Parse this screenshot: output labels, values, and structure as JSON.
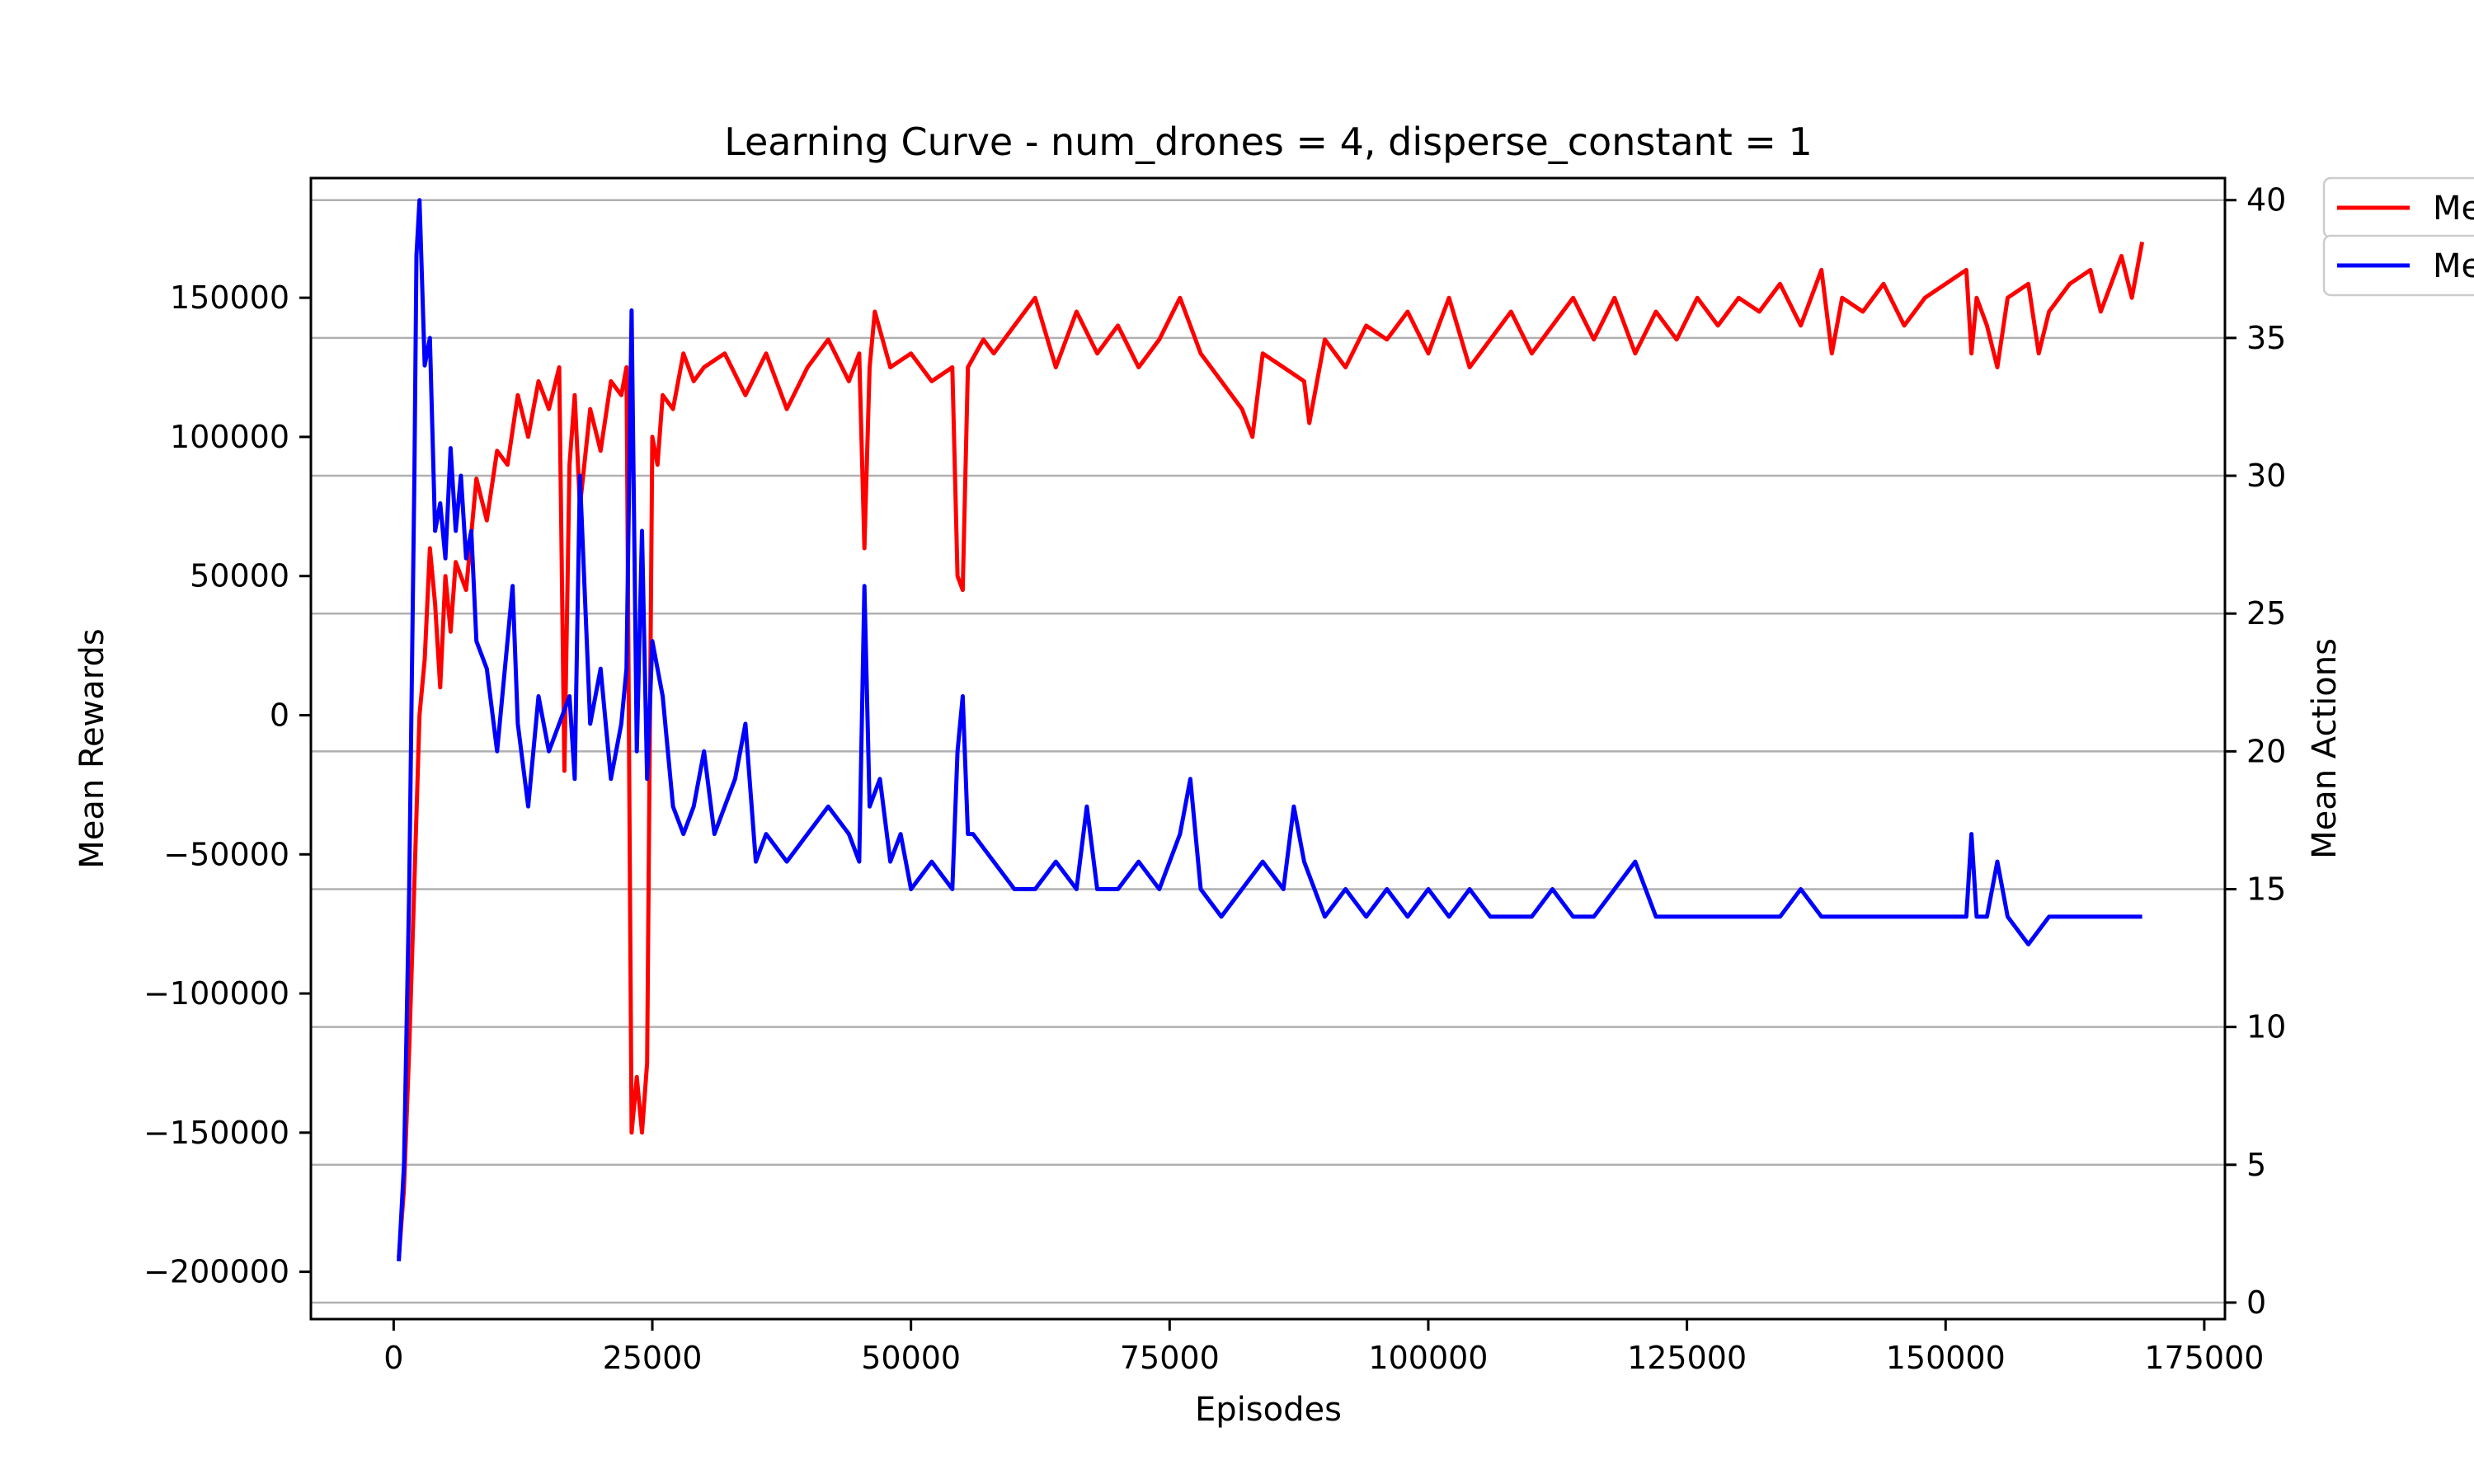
{
  "chart_data": {
    "type": "line",
    "title": "Learning Curve - num_drones = 4, disperse_constant = 1",
    "xlabel": "Episodes",
    "ylabel": "Mean Rewards",
    "y2label": "Mean Actions",
    "xlim": [
      -8000,
      177000
    ],
    "ylim": [
      -217000,
      193000
    ],
    "y2lim": [
      -0.6,
      40.8
    ],
    "xticks": [
      "0",
      "25000",
      "50000",
      "75000",
      "100000",
      "125000",
      "150000",
      "175000"
    ],
    "xtick_values": [
      0,
      25000,
      50000,
      75000,
      100000,
      125000,
      150000,
      175000
    ],
    "yticks": [
      "−200000",
      "−150000",
      "−100000",
      "−50000",
      "0",
      "50000",
      "100000",
      "150000"
    ],
    "ytick_values": [
      -200000,
      -150000,
      -100000,
      -50000,
      0,
      50000,
      100000,
      150000
    ],
    "y2ticks": [
      "0",
      "5",
      "10",
      "15",
      "20",
      "25",
      "30",
      "35",
      "40"
    ],
    "y2tick_values": [
      0,
      5,
      10,
      15,
      20,
      25,
      30,
      35,
      40
    ],
    "grid": "horizontal, right axis",
    "legend_position": "outside top-right",
    "series": [
      {
        "name": "Me",
        "axis": "left",
        "color": "#ff0000",
        "x": [
          500,
          1000,
          1500,
          2000,
          2500,
          3000,
          3500,
          4000,
          4500,
          5000,
          5500,
          6000,
          7000,
          8000,
          9000,
          10000,
          11000,
          12000,
          13000,
          14000,
          15000,
          16000,
          16500,
          17000,
          17500,
          18000,
          19000,
          20000,
          21000,
          22000,
          22500,
          23000,
          23500,
          24000,
          24500,
          25000,
          25500,
          26000,
          27000,
          28000,
          29000,
          30000,
          32000,
          34000,
          36000,
          38000,
          40000,
          42000,
          44000,
          45000,
          45500,
          46000,
          46500,
          48000,
          50000,
          52000,
          54000,
          54500,
          55000,
          55500,
          57000,
          58000,
          60000,
          62000,
          64000,
          66000,
          68000,
          70000,
          72000,
          74000,
          76000,
          78000,
          80000,
          82000,
          83000,
          84000,
          86000,
          88000,
          88500,
          90000,
          92000,
          94000,
          96000,
          98000,
          100000,
          102000,
          104000,
          106000,
          108000,
          110000,
          112000,
          114000,
          116000,
          118000,
          120000,
          122000,
          124000,
          126000,
          128000,
          130000,
          132000,
          134000,
          136000,
          138000,
          139000,
          140000,
          142000,
          144000,
          146000,
          148000,
          150000,
          152000,
          152500,
          153000,
          154000,
          155000,
          156000,
          158000,
          159000,
          160000,
          162000,
          164000,
          165000,
          166000,
          167000,
          168000,
          169000
        ],
        "values": [
          -195000,
          -170000,
          -120000,
          -60000,
          0,
          20000,
          60000,
          40000,
          10000,
          50000,
          30000,
          55000,
          45000,
          85000,
          70000,
          95000,
          90000,
          115000,
          100000,
          120000,
          110000,
          125000,
          -20000,
          90000,
          115000,
          75000,
          110000,
          95000,
          120000,
          115000,
          125000,
          -150000,
          -130000,
          -150000,
          -125000,
          100000,
          90000,
          115000,
          110000,
          130000,
          120000,
          125000,
          130000,
          115000,
          130000,
          110000,
          125000,
          135000,
          120000,
          130000,
          60000,
          125000,
          145000,
          125000,
          130000,
          120000,
          125000,
          50000,
          45000,
          125000,
          135000,
          130000,
          140000,
          150000,
          125000,
          145000,
          130000,
          140000,
          125000,
          135000,
          150000,
          130000,
          120000,
          110000,
          100000,
          130000,
          125000,
          120000,
          105000,
          135000,
          125000,
          140000,
          135000,
          145000,
          130000,
          150000,
          125000,
          135000,
          145000,
          130000,
          140000,
          150000,
          135000,
          150000,
          130000,
          145000,
          135000,
          150000,
          140000,
          150000,
          145000,
          155000,
          140000,
          160000,
          130000,
          150000,
          145000,
          155000,
          140000,
          150000,
          155000,
          160000,
          130000,
          150000,
          140000,
          125000,
          150000,
          155000,
          130000,
          145000,
          155000,
          160000,
          145000,
          155000,
          165000,
          150000,
          170000
        ]
      },
      {
        "name": "Me",
        "axis": "right",
        "color": "#0000ff",
        "x": [
          500,
          1000,
          1500,
          2000,
          2200,
          2500,
          3000,
          3500,
          4000,
          4500,
          5000,
          5500,
          6000,
          6500,
          7000,
          7500,
          8000,
          9000,
          10000,
          11000,
          11500,
          12000,
          13000,
          14000,
          15000,
          16000,
          17000,
          17500,
          18000,
          19000,
          20000,
          21000,
          22000,
          22500,
          23000,
          23500,
          24000,
          24500,
          25000,
          26000,
          27000,
          28000,
          29000,
          30000,
          31000,
          32000,
          33000,
          34000,
          35000,
          36000,
          38000,
          40000,
          42000,
          44000,
          45000,
          45500,
          46000,
          47000,
          48000,
          49000,
          50000,
          52000,
          54000,
          54500,
          55000,
          55500,
          56000,
          58000,
          60000,
          62000,
          64000,
          66000,
          67000,
          68000,
          70000,
          72000,
          74000,
          76000,
          77000,
          78000,
          80000,
          82000,
          84000,
          86000,
          87000,
          88000,
          90000,
          92000,
          94000,
          96000,
          98000,
          100000,
          102000,
          104000,
          106000,
          108000,
          110000,
          112000,
          114000,
          116000,
          118000,
          120000,
          122000,
          124000,
          126000,
          128000,
          130000,
          132000,
          134000,
          136000,
          138000,
          140000,
          142000,
          144000,
          146000,
          148000,
          150000,
          152000,
          152500,
          153000,
          154000,
          155000,
          156000,
          158000,
          160000,
          162000,
          164000,
          166000,
          168000,
          169000
        ],
        "values": [
          1.5,
          5,
          15,
          30,
          38,
          40,
          34,
          35,
          28,
          29,
          27,
          31,
          28,
          30,
          27,
          28,
          24,
          23,
          20,
          24,
          26,
          21,
          18,
          22,
          20,
          21,
          22,
          19,
          30,
          21,
          23,
          19,
          21,
          23,
          36,
          20,
          28,
          19,
          24,
          22,
          18,
          17,
          18,
          20,
          17,
          18,
          19,
          21,
          16,
          17,
          16,
          17,
          18,
          17,
          16,
          26,
          18,
          19,
          16,
          17,
          15,
          16,
          15,
          20,
          22,
          17,
          17,
          16,
          15,
          15,
          16,
          15,
          18,
          15,
          15,
          16,
          15,
          17,
          19,
          15,
          14,
          15,
          16,
          15,
          18,
          16,
          14,
          15,
          14,
          15,
          14,
          15,
          14,
          15,
          14,
          14,
          14,
          15,
          14,
          14,
          15,
          16,
          14,
          14,
          14,
          14,
          14,
          14,
          14,
          15,
          14,
          14,
          14,
          14,
          14,
          14,
          14,
          14,
          17,
          14,
          14,
          16,
          14,
          13,
          14,
          14,
          14,
          14,
          14,
          14
        ]
      }
    ]
  }
}
